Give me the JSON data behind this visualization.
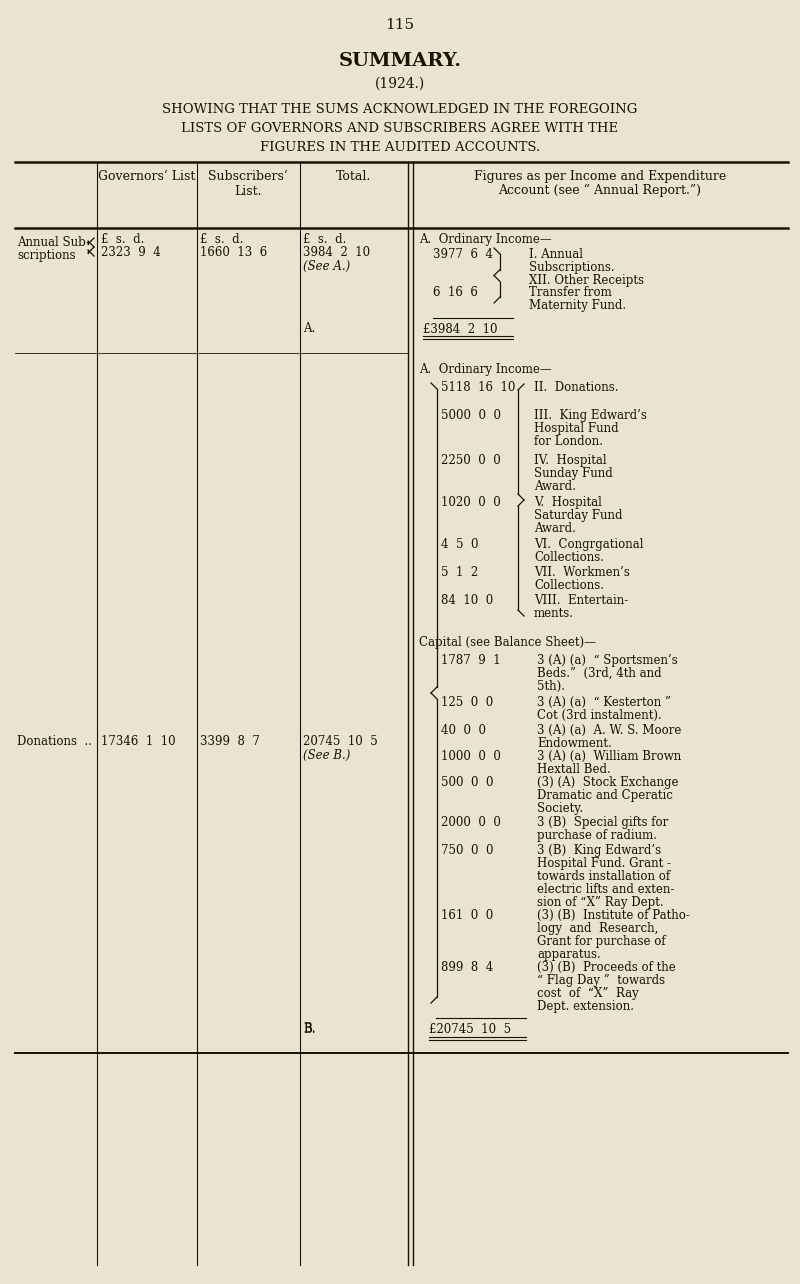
{
  "bg_color": "#e8e4d0",
  "text_color": "#1a1206",
  "page_number": "115",
  "title": "SUMMARY.",
  "subtitle": "(1924.)",
  "heading_lines": [
    "SHOWING THAT THE SUMS ACKNOWLEDGED IN THE FOREGOING",
    "LISTS OF GOVERNORS AND SUBSCRIBERS AGREE WITH THE",
    "FIGURES IN THE AUDITED ACCOUNTS."
  ],
  "col1_header": "Governors’ List",
  "col2_header": "Subscribers’\nList.",
  "col3_header": "Total.",
  "col4_header_line1": "Figures as per Income and Expenditure",
  "col4_header_line2": "Account (see “ Annual Report.”)",
  "row1_label1": "Annual Sub-",
  "row1_label2": "scriptions",
  "row1_gov_hdr": "£  s.  d.",
  "row1_gov_val": "2323  9  4",
  "row1_sub_hdr": "£  s.  d.",
  "row1_sub_val": "1660  13  6",
  "row1_tot_hdr": "£  s.  d.",
  "row1_tot_val": "3984  2  10",
  "row1_tot_ref": "(See A.)",
  "secA_header": "A.  Ordinary Income—",
  "secA_amt1": "3977  6  4",
  "secA_desc1a": "I. Annual",
  "secA_desc1b": "Subscriptions.",
  "secA_desc2a": "XII. Other Receipts",
  "secA_desc2b": "Transfer from",
  "secA_desc2c": "Maternity Fund.",
  "secA_amt2": "6  16  6",
  "secA_ref": "A.",
  "secA_total": "£3984  2  10",
  "row2_label": "Donations  ..",
  "row2_gov_val": "17346  1  10",
  "row2_sub_val": "3399  8  7",
  "row2_tot_val": "20745  10  5",
  "row2_tot_ref": "(See B.)",
  "secB_income_header": "A.  Ordinary Income—",
  "secB_income_items": [
    {
      "amt": "5118  16  10",
      "lines": [
        "II.  Donations."
      ]
    },
    {
      "amt": "5000  0  0",
      "lines": [
        "III.  King Edward’s",
        "Hospital Fund",
        "for London."
      ]
    },
    {
      "amt": "2250  0  0",
      "lines": [
        "IV.  Hospital",
        "Sunday Fund",
        "Award."
      ]
    },
    {
      "amt": "1020  0  0",
      "lines": [
        "V.  Hospital",
        "Saturday Fund",
        "Award."
      ]
    },
    {
      "amt": "4  5  0",
      "lines": [
        "VI.  Congrgational",
        "Collections."
      ]
    },
    {
      "amt": "5  1  2",
      "lines": [
        "VII.  Workmen’s",
        "Collections."
      ]
    },
    {
      "amt": "84  10  0",
      "lines": [
        "VIII.  Entertain-",
        "ments."
      ]
    }
  ],
  "capital_header": "Capital (see Balance Sheet)—",
  "capital_items": [
    {
      "amt": "1787  9  1",
      "lines": [
        "3 (A) (a)  “ Sportsmen’s",
        "Beds.”  (3rd, 4th and",
        "5th)."
      ]
    },
    {
      "amt": "125  0  0",
      "lines": [
        "3 (A) (a)  “ Kesterton ”",
        "Cot (3rd instalment)."
      ]
    },
    {
      "amt": "40  0  0",
      "lines": [
        "3 (A) (a)  A. W. S. Moore",
        "Endowment."
      ]
    },
    {
      "amt": "1000  0  0",
      "lines": [
        "3 (A) (a)  William Brown",
        "Hextall Bed."
      ]
    },
    {
      "amt": "500  0  0",
      "lines": [
        "(3) (A)  Stock Exchange",
        "Dramatic and Cperatic",
        "Society."
      ]
    },
    {
      "amt": "2000  0  0",
      "lines": [
        "3 (B)  Special gifts for",
        "purchase of radium."
      ]
    },
    {
      "amt": "750  0  0",
      "lines": [
        "3 (B)  King Edward’s",
        "Hospital Fund. Grant -",
        "towards installation of",
        "electric lifts and exten-",
        "sion of “X” Ray Dept."
      ]
    },
    {
      "amt": "161  0  0",
      "lines": [
        "(3) (B)  Institute of Patho-",
        "logy  and  Research,",
        "Grant for purchase of",
        "apparatus."
      ]
    },
    {
      "amt": "899  8  4",
      "lines": [
        "(3) (B)  Proceeds of the",
        "“ Flag Day ”  towards",
        "cost  of  “X”  Ray",
        "Dept. extension."
      ]
    }
  ],
  "secB_ref": "B.",
  "grand_total": "£20745  10  5"
}
